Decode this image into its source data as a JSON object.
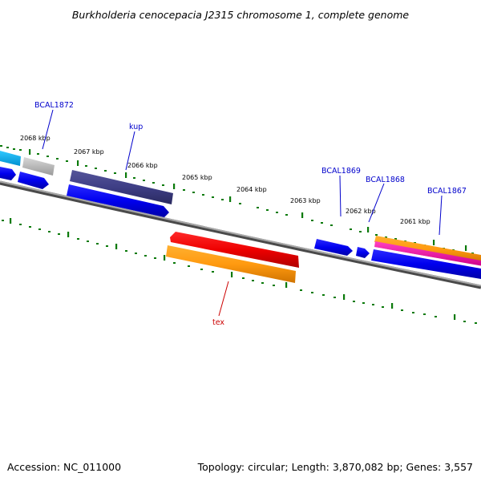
{
  "title": "Burkholderia cenocepacia J2315 chromosome 1, complete genome",
  "accession": "Accession: NC_011000",
  "summary": "Topology: circular; Length: 3,870,082 bp; Genes: 3,557",
  "ticks": [
    "2068 kbp",
    "2067 kbp",
    "2066 kbp",
    "2065 kbp",
    "2064 kbp",
    "2063 kbp",
    "2062 kbp",
    "2061 kbp"
  ],
  "gene_labels": {
    "bcal1872": "BCAL1872",
    "kup": "kup",
    "bcal1869": "BCAL1869",
    "bcal1868": "BCAL1868",
    "bcal1867": "BCAL1867",
    "tex": "tex"
  },
  "colors": {
    "label_blue": "#0000cc",
    "label_red": "#cc0000",
    "tick_green": "#0a7a0a",
    "backbone": "#808080"
  }
}
